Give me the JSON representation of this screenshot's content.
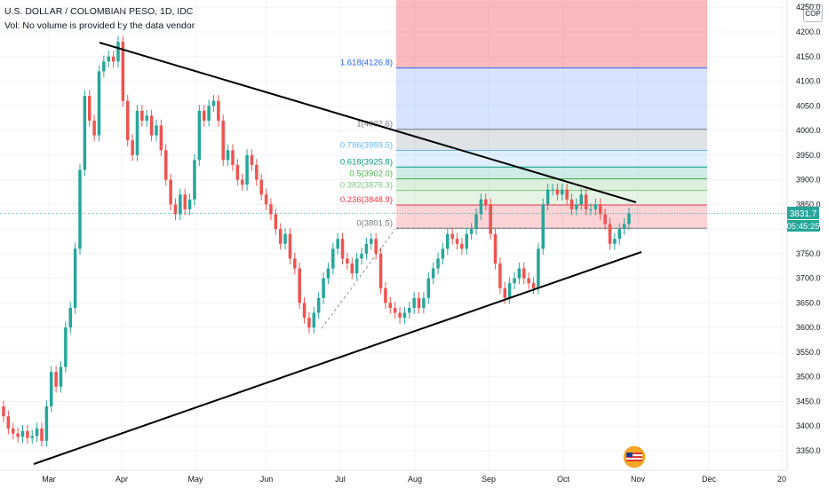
{
  "legend": {
    "title": "U.S. DOLLAR / COLOMBIAN PESO, 1D, IDC",
    "volume_note": "Vol: No volume is provided by the data vendor."
  },
  "currency_button": "COP",
  "price_badge": "3831.7",
  "countdown_badge": "05:45:25",
  "chart_data": {
    "type": "candlestick",
    "x_axis_labels": [
      "Mar",
      "Apr",
      "May",
      "Jun",
      "Jul",
      "Aug",
      "Sep",
      "Oct",
      "Nov",
      "Dec",
      "20"
    ],
    "y_axis_labels": [
      "3350.0",
      "3400.0",
      "3450.0",
      "3500.0",
      "3550.0",
      "3600.0",
      "3650.0",
      "3700.0",
      "3750.0",
      "3800.0",
      "3850.0",
      "3900.0",
      "3950.0",
      "4000.0",
      "4050.0",
      "4100.0",
      "4150.0",
      "4200.0",
      "4250.0"
    ],
    "ylim": [
      3325,
      4280
    ],
    "fib_levels": [
      {
        "label": "1.618(4126.8)",
        "price": 4126.8,
        "color": "#2962ff"
      },
      {
        "label": "1(4002.6)",
        "price": 4002.6,
        "color": "#787b86"
      },
      {
        "label": "0.786(3959.5)",
        "price": 3959.5,
        "color": "#64b5f6"
      },
      {
        "label": "0.618(3925.8)",
        "price": 3925.8,
        "color": "#089981"
      },
      {
        "label": "0.5(3902.0)",
        "price": 3902.0,
        "color": "#4caf50"
      },
      {
        "label": "0.382(3878.3)",
        "price": 3878.3,
        "color": "#81c784"
      },
      {
        "label": "0.236(3848.9)",
        "price": 3848.9,
        "color": "#f23645"
      },
      {
        "label": "0(3801.5)",
        "price": 3801.5,
        "color": "#787b86"
      }
    ],
    "closes": [
      3420,
      3395,
      3385,
      3378,
      3390,
      3376,
      3380,
      3395,
      3370,
      3440,
      3510,
      3480,
      3520,
      3600,
      3640,
      3760,
      3920,
      4070,
      4020,
      3990,
      4120,
      4140,
      4150,
      4140,
      4180,
      4060,
      3980,
      3950,
      4040,
      4020,
      4030,
      3990,
      4010,
      3960,
      3900,
      3850,
      3830,
      3870,
      3840,
      3860,
      3940,
      4040,
      4020,
      4050,
      4060,
      4020,
      3940,
      3960,
      3930,
      3900,
      3890,
      3950,
      3930,
      3900,
      3870,
      3850,
      3830,
      3800,
      3770,
      3790,
      3740,
      3720,
      3650,
      3620,
      3600,
      3630,
      3660,
      3700,
      3720,
      3760,
      3780,
      3740,
      3730,
      3710,
      3740,
      3750,
      3770,
      3780,
      3750,
      3680,
      3650,
      3640,
      3630,
      3620,
      3630,
      3640,
      3660,
      3640,
      3660,
      3700,
      3720,
      3740,
      3760,
      3790,
      3780,
      3770,
      3760,
      3790,
      3800,
      3830,
      3860,
      3850,
      3790,
      3730,
      3680,
      3660,
      3690,
      3700,
      3720,
      3700,
      3690,
      3680,
      3760,
      3850,
      3880,
      3880,
      3870,
      3880,
      3860,
      3840,
      3850,
      3870,
      3840,
      3840,
      3850,
      3830,
      3810,
      3770,
      3780,
      3800,
      3810,
      3831.7
    ],
    "opens": [
      3440,
      3420,
      3395,
      3385,
      3378,
      3390,
      3376,
      3380,
      3395,
      3370,
      3440,
      3510,
      3480,
      3520,
      3600,
      3640,
      3760,
      3920,
      4070,
      4020,
      3990,
      4120,
      4140,
      4150,
      4140,
      4180,
      4060,
      3980,
      3950,
      4040,
      4020,
      4030,
      3990,
      4010,
      3960,
      3900,
      3850,
      3830,
      3870,
      3840,
      3860,
      3940,
      4040,
      4020,
      4050,
      4060,
      4020,
      3940,
      3960,
      3930,
      3900,
      3890,
      3950,
      3930,
      3900,
      3870,
      3850,
      3830,
      3800,
      3770,
      3790,
      3740,
      3720,
      3650,
      3620,
      3600,
      3630,
      3660,
      3700,
      3720,
      3760,
      3780,
      3740,
      3730,
      3710,
      3740,
      3750,
      3770,
      3780,
      3750,
      3680,
      3650,
      3640,
      3630,
      3620,
      3630,
      3640,
      3660,
      3640,
      3660,
      3700,
      3720,
      3740,
      3760,
      3790,
      3780,
      3770,
      3760,
      3790,
      3800,
      3830,
      3860,
      3850,
      3790,
      3730,
      3680,
      3660,
      3690,
      3700,
      3720,
      3700,
      3690,
      3680,
      3760,
      3850,
      3880,
      3880,
      3870,
      3880,
      3860,
      3840,
      3850,
      3870,
      3840,
      3840,
      3850,
      3830,
      3810,
      3770,
      3780,
      3800,
      3810
    ]
  }
}
